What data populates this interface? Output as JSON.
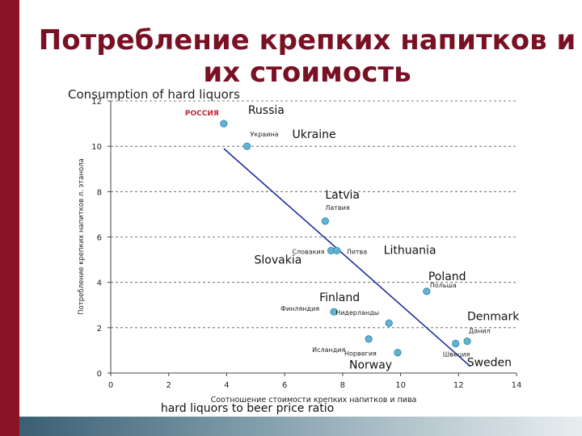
{
  "slide": {
    "title_line1": "Потребление крепких напитков и",
    "title_line2": "их стоимость"
  },
  "chart_data": {
    "type": "scatter",
    "title": "Consumption of hard liquors",
    "xlabel": "Соотношение стоимости крепких напитков и пива",
    "xlabel_en": "hard liquors to beer price ratio",
    "ylabel": "Потребление крепких напитков л. этанола",
    "xlim": [
      0,
      14
    ],
    "ylim": [
      0,
      12
    ],
    "x_ticks": [
      "0",
      "2",
      "4",
      "6",
      "8",
      "10",
      "12",
      "14"
    ],
    "y_ticks": [
      "0",
      "2",
      "4",
      "6",
      "8",
      "10",
      "12"
    ],
    "grid": "horizontal dashed",
    "colors": {
      "point": "#5fb3d3",
      "trend": "#1f2e9e",
      "title": "#7a1024",
      "russia": "#c0263a"
    },
    "points": [
      {
        "label": "РОССИЯ",
        "label_en": "Russia",
        "x": 3.9,
        "y": 11.0
      },
      {
        "label": "Украина",
        "label_en": "Ukraine",
        "x": 4.7,
        "y": 10.0
      },
      {
        "label": "Латвия",
        "label_en": "Latvia",
        "x": 7.4,
        "y": 6.7
      },
      {
        "label": "Словакия",
        "label_en": "Slovakia",
        "x": 7.6,
        "y": 5.4
      },
      {
        "label": "Литва",
        "label_en": "Lithuania",
        "x": 7.8,
        "y": 5.4
      },
      {
        "label": "Польша",
        "label_en": "Poland",
        "x": 10.9,
        "y": 3.6
      },
      {
        "label": "Финляндия",
        "label_en": "Finland",
        "x": 7.7,
        "y": 2.7
      },
      {
        "label": "Нидерланды",
        "label_en": "",
        "x": 9.6,
        "y": 2.2
      },
      {
        "label": "Исландия",
        "label_en": "",
        "x": 8.9,
        "y": 1.5
      },
      {
        "label": "Норвегия",
        "label_en": "Norway",
        "x": 9.9,
        "y": 0.9
      },
      {
        "label": "Швеция",
        "label_en": "Sweden",
        "x": 11.9,
        "y": 1.3
      },
      {
        "label": "Данил",
        "label_en": "Denmark",
        "x": 12.3,
        "y": 1.4
      }
    ],
    "trendline": [
      {
        "x": 3.9,
        "y": 9.9
      },
      {
        "x": 12.4,
        "y": 0.3
      }
    ]
  }
}
